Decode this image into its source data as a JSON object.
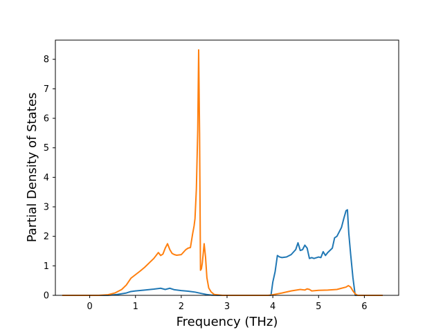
{
  "chart_data": {
    "type": "line",
    "title": "",
    "xlabel": "Frequency (THz)",
    "ylabel": "Partial Density of States",
    "xlim": [
      -0.75,
      6.75
    ],
    "ylim": [
      0,
      8.65
    ],
    "xticks": [
      0,
      1,
      2,
      3,
      4,
      5,
      6
    ],
    "yticks": [
      0,
      1,
      2,
      3,
      4,
      5,
      6,
      7,
      8
    ],
    "grid": false,
    "legend": "none",
    "series": [
      {
        "color": "#1f77b4",
        "x": [
          -0.6,
          0.4,
          0.6,
          0.8,
          0.9,
          1.0,
          1.2,
          1.4,
          1.55,
          1.65,
          1.75,
          1.85,
          2.0,
          2.15,
          2.3,
          2.45,
          2.55,
          2.65,
          2.8,
          3.5,
          3.96,
          4.0,
          4.05,
          4.1,
          4.15,
          4.2,
          4.3,
          4.4,
          4.5,
          4.55,
          4.6,
          4.65,
          4.7,
          4.75,
          4.8,
          4.85,
          4.9,
          5.0,
          5.05,
          5.1,
          5.15,
          5.2,
          5.3,
          5.35,
          5.4,
          5.45,
          5.5,
          5.55,
          5.6,
          5.63,
          5.66,
          5.7,
          5.75,
          5.8,
          6.4
        ],
        "values": [
          0,
          0,
          0.03,
          0.08,
          0.13,
          0.15,
          0.18,
          0.21,
          0.24,
          0.2,
          0.24,
          0.19,
          0.16,
          0.14,
          0.11,
          0.06,
          0.03,
          0.01,
          0,
          0,
          0,
          0.45,
          0.8,
          1.35,
          1.3,
          1.28,
          1.3,
          1.38,
          1.55,
          1.78,
          1.52,
          1.55,
          1.7,
          1.6,
          1.25,
          1.28,
          1.25,
          1.3,
          1.28,
          1.48,
          1.35,
          1.45,
          1.6,
          1.95,
          2.0,
          2.15,
          2.3,
          2.6,
          2.87,
          2.9,
          2.1,
          1.4,
          0.6,
          0,
          0
        ]
      },
      {
        "color": "#ff7f0e",
        "x": [
          -0.6,
          0.2,
          0.4,
          0.55,
          0.7,
          0.8,
          0.9,
          1.0,
          1.1,
          1.2,
          1.3,
          1.4,
          1.5,
          1.55,
          1.6,
          1.65,
          1.7,
          1.75,
          1.8,
          1.85,
          1.9,
          2.0,
          2.1,
          2.15,
          2.2,
          2.25,
          2.28,
          2.3,
          2.33,
          2.36,
          2.38,
          2.4,
          2.42,
          2.44,
          2.46,
          2.5,
          2.53,
          2.56,
          2.6,
          2.65,
          2.72,
          2.9,
          3.9,
          4.0,
          4.2,
          4.4,
          4.6,
          4.7,
          4.75,
          4.8,
          4.85,
          5.0,
          5.2,
          5.4,
          5.5,
          5.6,
          5.65,
          5.7,
          5.75,
          5.8,
          5.85,
          6.4
        ],
        "values": [
          0,
          0,
          0.02,
          0.08,
          0.2,
          0.35,
          0.58,
          0.7,
          0.82,
          0.95,
          1.1,
          1.25,
          1.45,
          1.35,
          1.4,
          1.6,
          1.75,
          1.55,
          1.42,
          1.38,
          1.36,
          1.38,
          1.55,
          1.6,
          1.62,
          2.1,
          2.35,
          2.6,
          3.6,
          5.6,
          8.32,
          5.5,
          0.85,
          0.9,
          1.1,
          1.75,
          1.3,
          0.6,
          0.25,
          0.12,
          0.03,
          0,
          0,
          0.02,
          0.08,
          0.15,
          0.2,
          0.18,
          0.22,
          0.2,
          0.15,
          0.17,
          0.18,
          0.2,
          0.24,
          0.28,
          0.33,
          0.28,
          0.15,
          0.05,
          0,
          0
        ]
      }
    ]
  }
}
